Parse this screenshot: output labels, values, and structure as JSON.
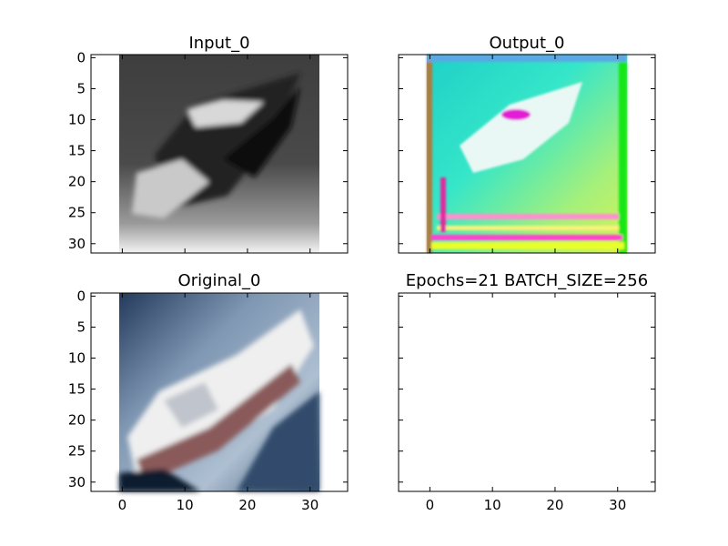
{
  "chart_data": [
    {
      "id": "p00",
      "type": "image",
      "title": "Input_0",
      "image": "grayscale-ship",
      "xlim": [
        -5,
        36
      ],
      "ylim": [
        31.5,
        -0.5
      ],
      "xticks": [
        0,
        10,
        20,
        30
      ],
      "yticks": [
        0,
        5,
        10,
        15,
        20,
        25,
        30
      ],
      "xticklabels": [
        "",
        "",
        "",
        ""
      ],
      "yticklabels": [
        "0",
        "5",
        "10",
        "15",
        "20",
        "25",
        "30"
      ],
      "image_extent": [
        -0.5,
        31.5
      ]
    },
    {
      "id": "p01",
      "type": "image",
      "title": "Output_0",
      "image": "colorful-noisy-ship",
      "xlim": [
        -5,
        36
      ],
      "ylim": [
        31.5,
        -0.5
      ],
      "xticks": [
        0,
        10,
        20,
        30
      ],
      "yticks": [
        0,
        5,
        10,
        15,
        20,
        25,
        30
      ],
      "xticklabels": [
        "",
        "",
        "",
        ""
      ],
      "yticklabels": [
        "",
        "",
        "",
        "",
        "",
        "",
        ""
      ],
      "image_extent": [
        -0.5,
        31.5
      ]
    },
    {
      "id": "p10",
      "type": "image",
      "title": "Original_0",
      "image": "color-ship",
      "xlim": [
        -5,
        36
      ],
      "ylim": [
        31.5,
        -0.5
      ],
      "xticks": [
        0,
        10,
        20,
        30
      ],
      "yticks": [
        0,
        5,
        10,
        15,
        20,
        25,
        30
      ],
      "xticklabels": [
        "0",
        "10",
        "20",
        "30"
      ],
      "yticklabels": [
        "0",
        "5",
        "10",
        "15",
        "20",
        "25",
        "30"
      ],
      "image_extent": [
        -0.5,
        31.5
      ]
    },
    {
      "id": "p11",
      "type": "empty",
      "title": "Epochs=21 BATCH_SIZE=256",
      "xlim": [
        -5,
        36
      ],
      "ylim": [
        31.5,
        -0.5
      ],
      "xticks": [
        0,
        10,
        20,
        30
      ],
      "yticks": [
        0,
        5,
        10,
        15,
        20,
        25,
        30
      ],
      "xticklabels": [
        "0",
        "10",
        "20",
        "30"
      ],
      "yticklabels": [
        "",
        "",
        "",
        "",
        "",
        "",
        ""
      ]
    }
  ]
}
